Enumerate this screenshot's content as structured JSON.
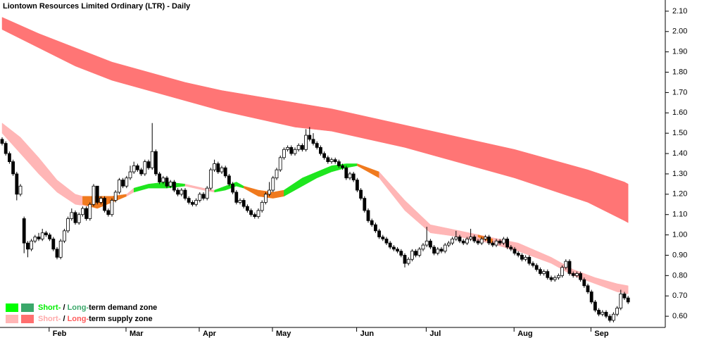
{
  "chart_data": {
    "type": "candlestick",
    "title": "Liontown Resources Limited Ordinary (LTR) - Daily",
    "up_color": "#ffffff",
    "down_color": "#000000",
    "ylim": [
      0.545,
      2.155
    ],
    "yticks": [
      {
        "value": 0.6,
        "label": "0.60"
      },
      {
        "value": 0.7,
        "label": "0.70"
      },
      {
        "value": 0.8,
        "label": "0.80"
      },
      {
        "value": 0.9,
        "label": "0.90"
      },
      {
        "value": 1.0,
        "label": "1.00"
      },
      {
        "value": 1.1,
        "label": "1.10"
      },
      {
        "value": 1.2,
        "label": "1.20"
      },
      {
        "value": 1.3,
        "label": "1.30"
      },
      {
        "value": 1.4,
        "label": "1.40"
      },
      {
        "value": 1.5,
        "label": "1.50"
      },
      {
        "value": 1.6,
        "label": "1.60"
      },
      {
        "value": 1.7,
        "label": "1.70"
      },
      {
        "value": 1.8,
        "label": "1.80"
      },
      {
        "value": 1.9,
        "label": "1.90"
      },
      {
        "value": 2.0,
        "label": "2.00"
      },
      {
        "value": 2.1,
        "label": "2.10"
      }
    ],
    "categories": [
      null,
      null,
      null,
      null,
      null,
      null,
      null,
      null,
      null,
      null,
      null,
      null,
      null,
      null,
      "Feb",
      null,
      null,
      null,
      null,
      null,
      null,
      null,
      null,
      null,
      null,
      null,
      null,
      null,
      null,
      null,
      null,
      null,
      null,
      null,
      null,
      "Mar",
      null,
      null,
      null,
      null,
      null,
      null,
      null,
      null,
      null,
      null,
      null,
      null,
      null,
      null,
      null,
      null,
      null,
      null,
      null,
      "Apr",
      null,
      null,
      null,
      null,
      null,
      null,
      null,
      null,
      null,
      null,
      null,
      null,
      null,
      null,
      null,
      null,
      null,
      null,
      null,
      "May",
      null,
      null,
      null,
      null,
      null,
      null,
      null,
      null,
      null,
      null,
      null,
      null,
      null,
      null,
      null,
      null,
      null,
      null,
      null,
      null,
      null,
      null,
      "Jun",
      null,
      null,
      null,
      null,
      null,
      null,
      null,
      null,
      null,
      null,
      null,
      null,
      null,
      null,
      null,
      null,
      null,
      null,
      "Jul",
      null,
      null,
      null,
      null,
      null,
      null,
      null,
      null,
      null,
      null,
      null,
      null,
      null,
      null,
      null,
      null,
      null,
      null,
      null,
      null,
      null,
      null,
      null,
      "Aug",
      null,
      null,
      null,
      null,
      null,
      null,
      null,
      null,
      null,
      null,
      null,
      null,
      null,
      null,
      null,
      null,
      null,
      null,
      null,
      null,
      "Sep",
      null,
      null,
      null,
      null,
      null,
      null,
      null,
      null,
      null
    ],
    "open": [
      1.47,
      1.45,
      1.4,
      1.36,
      1.3,
      1.2,
      1.08,
      0.96,
      0.93,
      0.97,
      0.99,
      0.98,
      1.01,
      1.0,
      0.98,
      0.93,
      0.89,
      0.97,
      1.02,
      1.08,
      1.11,
      1.06,
      1.1,
      1.13,
      1.08,
      1.15,
      1.24,
      1.16,
      1.18,
      1.12,
      1.1,
      1.17,
      1.21,
      1.27,
      1.24,
      1.28,
      1.31,
      1.34,
      1.32,
      1.3,
      1.36,
      1.33,
      1.41,
      1.3,
      1.26,
      1.28,
      1.24,
      1.26,
      1.22,
      1.2,
      1.22,
      1.18,
      1.16,
      1.15,
      1.17,
      1.2,
      1.18,
      1.23,
      1.32,
      1.35,
      1.31,
      1.33,
      1.29,
      1.25,
      1.21,
      1.16,
      1.17,
      1.14,
      1.12,
      1.1,
      1.09,
      1.12,
      1.16,
      1.2,
      1.22,
      1.28,
      1.32,
      1.38,
      1.42,
      1.43,
      1.4,
      1.42,
      1.44,
      1.42,
      1.49,
      1.47,
      1.45,
      1.43,
      1.4,
      1.38,
      1.36,
      1.37,
      1.36,
      1.34,
      1.33,
      1.28,
      1.3,
      1.27,
      1.22,
      1.18,
      1.12,
      1.07,
      1.05,
      1.02,
      0.99,
      0.98,
      0.96,
      0.94,
      0.93,
      0.92,
      0.9,
      0.86,
      0.88,
      0.92,
      0.9,
      0.93,
      0.95,
      0.97,
      0.94,
      0.91,
      0.93,
      0.92,
      0.95,
      0.96,
      0.98,
      0.99,
      0.97,
      0.96,
      0.98,
      0.99,
      0.97,
      0.96,
      0.98,
      0.99,
      0.96,
      0.95,
      0.97,
      0.96,
      0.98,
      0.94,
      0.93,
      0.91,
      0.9,
      0.88,
      0.89,
      0.86,
      0.85,
      0.83,
      0.81,
      0.82,
      0.79,
      0.78,
      0.79,
      0.8,
      0.84,
      0.87,
      0.81,
      0.8,
      0.81,
      0.78,
      0.75,
      0.72,
      0.67,
      0.63,
      0.61,
      0.62,
      0.6,
      0.58,
      0.61,
      0.64,
      0.71,
      0.69
    ],
    "high": [
      1.48,
      1.46,
      1.41,
      1.37,
      1.31,
      1.25,
      1.09,
      0.97,
      0.98,
      1.0,
      1.01,
      1.03,
      1.02,
      1.01,
      0.99,
      0.94,
      0.98,
      1.03,
      1.09,
      1.13,
      1.12,
      1.11,
      1.14,
      1.14,
      1.16,
      1.25,
      1.24,
      1.19,
      1.19,
      1.13,
      1.18,
      1.22,
      1.28,
      1.28,
      1.29,
      1.34,
      1.36,
      1.35,
      1.33,
      1.37,
      1.37,
      1.55,
      1.42,
      1.31,
      1.29,
      1.29,
      1.27,
      1.27,
      1.23,
      1.23,
      1.23,
      1.19,
      1.17,
      1.18,
      1.21,
      1.21,
      1.24,
      1.33,
      1.37,
      1.36,
      1.34,
      1.34,
      1.3,
      1.26,
      1.22,
      1.18,
      1.18,
      1.15,
      1.13,
      1.11,
      1.13,
      1.17,
      1.21,
      1.26,
      1.29,
      1.33,
      1.39,
      1.43,
      1.44,
      1.44,
      1.43,
      1.45,
      1.45,
      1.52,
      1.53,
      1.5,
      1.46,
      1.44,
      1.41,
      1.39,
      1.38,
      1.38,
      1.37,
      1.35,
      1.34,
      1.31,
      1.31,
      1.28,
      1.23,
      1.19,
      1.13,
      1.08,
      1.06,
      1.03,
      1.0,
      0.99,
      0.97,
      0.95,
      0.94,
      0.93,
      0.91,
      0.89,
      0.93,
      0.93,
      0.94,
      0.96,
      1.04,
      0.98,
      0.95,
      0.94,
      0.94,
      0.96,
      0.97,
      0.99,
      1.02,
      1.0,
      0.98,
      0.99,
      1.03,
      1.0,
      0.98,
      0.99,
      1.0,
      1.0,
      0.97,
      0.98,
      0.98,
      0.99,
      0.99,
      0.95,
      0.94,
      0.92,
      0.91,
      0.9,
      0.9,
      0.87,
      0.86,
      0.84,
      0.83,
      0.83,
      0.8,
      0.8,
      0.81,
      0.85,
      0.88,
      0.88,
      0.82,
      0.82,
      0.82,
      0.79,
      0.76,
      0.73,
      0.68,
      0.64,
      0.63,
      0.63,
      0.61,
      0.62,
      0.65,
      0.73,
      0.72,
      0.7
    ],
    "low": [
      1.44,
      1.39,
      1.35,
      1.29,
      1.17,
      1.19,
      0.91,
      0.89,
      0.92,
      0.96,
      0.97,
      0.97,
      0.99,
      0.97,
      0.92,
      0.88,
      0.88,
      0.96,
      1.01,
      1.07,
      1.05,
      1.05,
      1.09,
      1.07,
      1.07,
      1.14,
      1.15,
      1.15,
      1.11,
      1.09,
      1.09,
      1.16,
      1.2,
      1.23,
      1.23,
      1.27,
      1.3,
      1.31,
      1.29,
      1.29,
      1.32,
      1.32,
      1.29,
      1.25,
      1.25,
      1.23,
      1.23,
      1.21,
      1.19,
      1.19,
      1.17,
      1.15,
      1.14,
      1.14,
      1.16,
      1.17,
      1.17,
      1.22,
      1.31,
      1.3,
      1.3,
      1.28,
      1.24,
      1.2,
      1.15,
      1.15,
      1.13,
      1.11,
      1.09,
      1.08,
      1.08,
      1.11,
      1.15,
      1.19,
      1.21,
      1.27,
      1.31,
      1.37,
      1.41,
      1.39,
      1.39,
      1.41,
      1.41,
      1.41,
      1.46,
      1.44,
      1.42,
      1.39,
      1.37,
      1.35,
      1.35,
      1.35,
      1.33,
      1.32,
      1.27,
      1.27,
      1.26,
      1.21,
      1.17,
      1.11,
      1.06,
      1.04,
      1.01,
      0.98,
      0.97,
      0.95,
      0.93,
      0.92,
      0.91,
      0.89,
      0.84,
      0.85,
      0.87,
      0.89,
      0.89,
      0.92,
      0.94,
      0.93,
      0.9,
      0.9,
      0.91,
      0.91,
      0.94,
      0.95,
      0.97,
      0.96,
      0.95,
      0.95,
      0.97,
      0.96,
      0.95,
      0.95,
      0.97,
      0.95,
      0.94,
      0.94,
      0.95,
      0.95,
      0.93,
      0.92,
      0.9,
      0.89,
      0.87,
      0.87,
      0.85,
      0.84,
      0.82,
      0.8,
      0.8,
      0.78,
      0.77,
      0.77,
      0.78,
      0.79,
      0.83,
      0.8,
      0.79,
      0.79,
      0.77,
      0.74,
      0.71,
      0.66,
      0.62,
      0.6,
      0.6,
      0.59,
      0.57,
      0.57,
      0.6,
      0.63,
      0.68,
      0.66
    ],
    "close": [
      1.45,
      1.4,
      1.36,
      1.3,
      1.2,
      1.24,
      0.96,
      0.93,
      0.97,
      0.99,
      0.98,
      1.01,
      1.0,
      0.98,
      0.93,
      0.89,
      0.97,
      1.02,
      1.08,
      1.11,
      1.06,
      1.1,
      1.13,
      1.08,
      1.15,
      1.24,
      1.16,
      1.18,
      1.12,
      1.1,
      1.17,
      1.21,
      1.27,
      1.24,
      1.28,
      1.31,
      1.34,
      1.32,
      1.3,
      1.36,
      1.33,
      1.41,
      1.3,
      1.26,
      1.28,
      1.24,
      1.26,
      1.22,
      1.2,
      1.22,
      1.18,
      1.16,
      1.15,
      1.17,
      1.2,
      1.18,
      1.23,
      1.32,
      1.35,
      1.31,
      1.33,
      1.29,
      1.25,
      1.21,
      1.16,
      1.17,
      1.14,
      1.12,
      1.1,
      1.09,
      1.12,
      1.16,
      1.2,
      1.22,
      1.28,
      1.32,
      1.38,
      1.42,
      1.43,
      1.4,
      1.42,
      1.44,
      1.42,
      1.49,
      1.47,
      1.45,
      1.43,
      1.4,
      1.38,
      1.36,
      1.37,
      1.36,
      1.34,
      1.33,
      1.28,
      1.3,
      1.27,
      1.22,
      1.18,
      1.12,
      1.07,
      1.05,
      1.02,
      0.99,
      0.98,
      0.96,
      0.94,
      0.93,
      0.92,
      0.9,
      0.86,
      0.88,
      0.92,
      0.9,
      0.93,
      0.95,
      0.97,
      0.94,
      0.91,
      0.93,
      0.92,
      0.95,
      0.96,
      0.98,
      0.99,
      0.97,
      0.96,
      0.98,
      0.99,
      0.97,
      0.96,
      0.98,
      0.99,
      0.96,
      0.95,
      0.97,
      0.96,
      0.98,
      0.94,
      0.93,
      0.91,
      0.9,
      0.88,
      0.89,
      0.86,
      0.85,
      0.83,
      0.81,
      0.82,
      0.79,
      0.78,
      0.79,
      0.8,
      0.84,
      0.87,
      0.81,
      0.8,
      0.81,
      0.78,
      0.75,
      0.72,
      0.67,
      0.63,
      0.61,
      0.62,
      0.6,
      0.58,
      0.61,
      0.64,
      0.71,
      0.69,
      0.67
    ],
    "bands": [
      {
        "color": "#ff7575",
        "x": [
          0,
          10,
          20,
          30,
          40,
          50,
          60,
          70,
          80,
          90,
          100,
          110,
          120,
          130,
          140,
          150,
          160,
          170,
          171
        ],
        "upper": [
          2.07,
          1.99,
          1.92,
          1.85,
          1.8,
          1.75,
          1.71,
          1.68,
          1.65,
          1.62,
          1.58,
          1.54,
          1.5,
          1.46,
          1.42,
          1.37,
          1.32,
          1.26,
          1.25
        ],
        "lower": [
          2.01,
          1.92,
          1.83,
          1.76,
          1.71,
          1.66,
          1.61,
          1.57,
          1.53,
          1.51,
          1.47,
          1.43,
          1.38,
          1.33,
          1.28,
          1.22,
          1.16,
          1.07,
          1.06
        ]
      },
      {
        "color": "#ffb6b6",
        "x": [
          0,
          5,
          10,
          15,
          20,
          24
        ],
        "upper": [
          1.55,
          1.48,
          1.38,
          1.27,
          1.2,
          1.18
        ],
        "lower": [
          1.5,
          1.4,
          1.3,
          1.21,
          1.15,
          1.14
        ]
      },
      {
        "color": "#f07a1e",
        "x": [
          22,
          26,
          30,
          34
        ],
        "upper": [
          1.19,
          1.19,
          1.19,
          1.2
        ],
        "lower": [
          1.15,
          1.13,
          1.16,
          1.19
        ]
      },
      {
        "color": "#ffb6b6",
        "x": [
          34,
          36
        ],
        "upper": [
          1.2,
          1.23
        ],
        "lower": [
          1.19,
          1.21
        ]
      },
      {
        "color": "#1ee61e",
        "x": [
          36,
          40,
          45,
          50
        ],
        "upper": [
          1.23,
          1.25,
          1.26,
          1.25
        ],
        "lower": [
          1.21,
          1.23,
          1.23,
          1.24
        ]
      },
      {
        "color": "#ffb6b6",
        "x": [
          50,
          55,
          58
        ],
        "upper": [
          1.25,
          1.23,
          1.22
        ],
        "lower": [
          1.24,
          1.22,
          1.21
        ]
      },
      {
        "color": "#1ee61e",
        "x": [
          58,
          61,
          64,
          66
        ],
        "upper": [
          1.22,
          1.24,
          1.26,
          1.24
        ],
        "lower": [
          1.21,
          1.22,
          1.24,
          1.23
        ]
      },
      {
        "color": "#f07a1e",
        "x": [
          66,
          70,
          74,
          77
        ],
        "upper": [
          1.24,
          1.22,
          1.21,
          1.22
        ],
        "lower": [
          1.23,
          1.19,
          1.18,
          1.19
        ]
      },
      {
        "color": "#1ee61e",
        "x": [
          77,
          82,
          86,
          90,
          94,
          97
        ],
        "upper": [
          1.22,
          1.28,
          1.31,
          1.34,
          1.35,
          1.35
        ],
        "lower": [
          1.19,
          1.24,
          1.28,
          1.31,
          1.33,
          1.34
        ]
      },
      {
        "color": "#f07a1e",
        "x": [
          97,
          100,
          103
        ],
        "upper": [
          1.35,
          1.33,
          1.31
        ],
        "lower": [
          1.34,
          1.31,
          1.28
        ]
      },
      {
        "color": "#ffb6b6",
        "x": [
          103,
          110,
          117,
          125,
          133,
          141,
          150,
          156,
          162,
          168,
          171
        ],
        "upper": [
          1.31,
          1.17,
          1.05,
          1.02,
          0.99,
          0.96,
          0.89,
          0.83,
          0.79,
          0.76,
          0.75
        ],
        "lower": [
          1.28,
          1.12,
          1.01,
          0.99,
          0.96,
          0.92,
          0.86,
          0.8,
          0.76,
          0.72,
          0.71
        ]
      },
      {
        "color": "#f07a1e",
        "x": [
          130,
          134
        ],
        "upper": [
          1.0,
          0.98
        ],
        "lower": [
          0.99,
          0.96
        ]
      }
    ],
    "legend": [
      {
        "colors": [
          "#00ff00",
          "#3aa86a"
        ],
        "parts": [
          "Short-",
          " / ",
          "Long-",
          "term demand zone"
        ],
        "part_colors": [
          "#00ee00",
          "#000000",
          "#3aa86a",
          "#000000"
        ]
      },
      {
        "colors": [
          "#ffb6b6",
          "#ff6f6f"
        ],
        "parts": [
          "Short-",
          " / ",
          "Long-",
          "term supply zone"
        ],
        "part_colors": [
          "#ffaaaa",
          "#000000",
          "#ff5a5a",
          "#000000"
        ]
      }
    ]
  }
}
